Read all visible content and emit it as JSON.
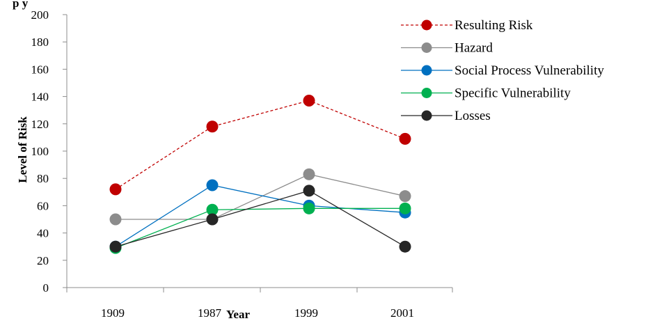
{
  "chart_data": {
    "type": "line",
    "title": "",
    "xlabel": "Year",
    "ylabel": "Level of Risk",
    "categories": [
      "1909",
      "1987",
      "1999",
      "2001"
    ],
    "ylim": [
      0,
      200
    ],
    "yticks": [
      "0",
      "20",
      "40",
      "60",
      "80",
      "100",
      "120",
      "140",
      "160",
      "180",
      "200"
    ],
    "grid": false,
    "legend_position": "top-right",
    "series": [
      {
        "name": "Resulting Risk",
        "values": [
          72,
          118,
          137,
          109
        ],
        "color": "#c00000",
        "dashed": true
      },
      {
        "name": "Hazard",
        "values": [
          50,
          50,
          83,
          67
        ],
        "color": "#8c8c8c",
        "dashed": false
      },
      {
        "name": "Social Process Vulnerability",
        "values": [
          30,
          75,
          60,
          55
        ],
        "color": "#0070c0",
        "dashed": false
      },
      {
        "name": "Specific Vulnerability",
        "values": [
          29,
          57,
          58,
          58
        ],
        "color": "#00b050",
        "dashed": false
      },
      {
        "name": "Losses",
        "values": [
          30,
          50,
          71,
          30
        ],
        "color": "#262626",
        "dashed": false
      }
    ]
  }
}
